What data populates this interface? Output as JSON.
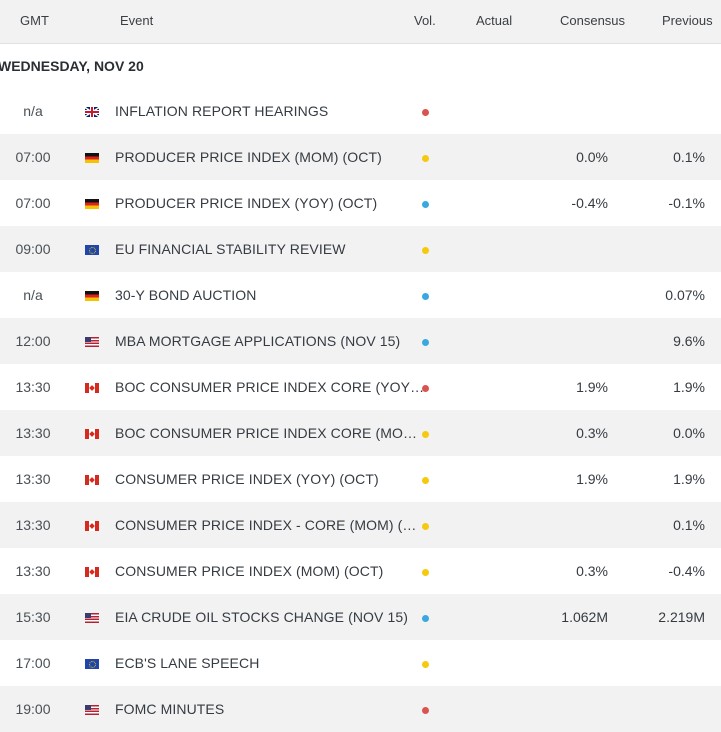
{
  "headers": {
    "gmt": "GMT",
    "event": "Event",
    "vol": "Vol.",
    "actual": "Actual",
    "consensus": "Consensus",
    "previous": "Previous"
  },
  "date_label": "WEDNESDAY, NOV 20",
  "volatility_colors": {
    "high": "#d9534f",
    "medium": "#f6c90e",
    "low": "#3aa8e0"
  },
  "rows": [
    {
      "time": "n/a",
      "country": "gb",
      "event": "INFLATION REPORT HEARINGS",
      "vol": "high",
      "actual": "",
      "consensus": "",
      "previous": ""
    },
    {
      "time": "07:00",
      "country": "de",
      "event": "PRODUCER PRICE INDEX (MOM) (OCT)",
      "vol": "medium",
      "actual": "",
      "consensus": "0.0%",
      "previous": "0.1%"
    },
    {
      "time": "07:00",
      "country": "de",
      "event": "PRODUCER PRICE INDEX (YOY) (OCT)",
      "vol": "low",
      "actual": "",
      "consensus": "-0.4%",
      "previous": "-0.1%"
    },
    {
      "time": "09:00",
      "country": "eu",
      "event": "EU FINANCIAL STABILITY REVIEW",
      "vol": "medium",
      "actual": "",
      "consensus": "",
      "previous": ""
    },
    {
      "time": "n/a",
      "country": "de",
      "event": "30-Y BOND AUCTION",
      "vol": "low",
      "actual": "",
      "consensus": "",
      "previous": "0.07%"
    },
    {
      "time": "12:00",
      "country": "us",
      "event": "MBA MORTGAGE APPLICATIONS (NOV 15)",
      "vol": "low",
      "actual": "",
      "consensus": "",
      "previous": "9.6%"
    },
    {
      "time": "13:30",
      "country": "ca",
      "event": "BOC CONSUMER PRICE INDEX CORE (YOY…",
      "vol": "high",
      "actual": "",
      "consensus": "1.9%",
      "previous": "1.9%"
    },
    {
      "time": "13:30",
      "country": "ca",
      "event": "BOC CONSUMER PRICE INDEX CORE (MO…",
      "vol": "medium",
      "actual": "",
      "consensus": "0.3%",
      "previous": "0.0%"
    },
    {
      "time": "13:30",
      "country": "ca",
      "event": "CONSUMER PRICE INDEX (YOY) (OCT)",
      "vol": "medium",
      "actual": "",
      "consensus": "1.9%",
      "previous": "1.9%"
    },
    {
      "time": "13:30",
      "country": "ca",
      "event": "CONSUMER PRICE INDEX - CORE (MOM) (…",
      "vol": "medium",
      "actual": "",
      "consensus": "",
      "previous": "0.1%"
    },
    {
      "time": "13:30",
      "country": "ca",
      "event": "CONSUMER PRICE INDEX (MOM) (OCT)",
      "vol": "medium",
      "actual": "",
      "consensus": "0.3%",
      "previous": "-0.4%"
    },
    {
      "time": "15:30",
      "country": "us",
      "event": "EIA CRUDE OIL STOCKS CHANGE (NOV 15)",
      "vol": "low",
      "actual": "",
      "consensus": "1.062M",
      "previous": "2.219M"
    },
    {
      "time": "17:00",
      "country": "eu",
      "event": "ECB'S LANE SPEECH",
      "vol": "medium",
      "actual": "",
      "consensus": "",
      "previous": ""
    },
    {
      "time": "19:00",
      "country": "us",
      "event": "FOMC MINUTES",
      "vol": "high",
      "actual": "",
      "consensus": "",
      "previous": ""
    }
  ]
}
